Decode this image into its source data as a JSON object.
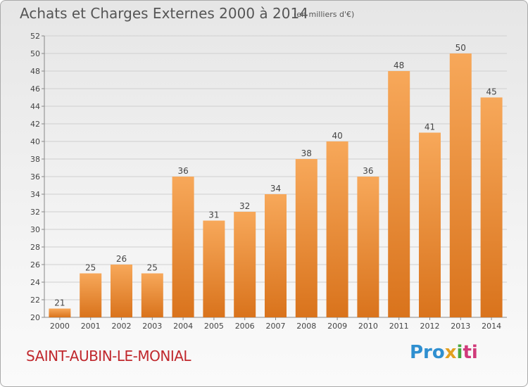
{
  "header": {
    "title": "Achats et Charges Externes 2000 à 2014",
    "subtitle": "(en milliers d'€)"
  },
  "footer": {
    "place": "SAINT-AUBIN-LE-MONIAL",
    "logo": [
      "Pro",
      "x",
      "i",
      "ti"
    ]
  },
  "colors": {
    "bar_light": "#f7a85a",
    "bar_dark": "#d9731c",
    "place_text": "#c0282d"
  },
  "chart_data": {
    "type": "bar",
    "title": "Achats et Charges Externes 2000 à 2014",
    "subtitle": "(en milliers d'€)",
    "categories": [
      "2000",
      "2001",
      "2002",
      "2003",
      "2004",
      "2005",
      "2006",
      "2007",
      "2008",
      "2009",
      "2010",
      "2011",
      "2012",
      "2013",
      "2014"
    ],
    "values": [
      21,
      25,
      26,
      25,
      36,
      31,
      32,
      34,
      38,
      40,
      36,
      48,
      41,
      50,
      45
    ],
    "ylim": [
      20,
      52
    ],
    "yticks": [
      "20",
      "22",
      "24",
      "26",
      "28",
      "30",
      "32",
      "34",
      "36",
      "38",
      "40",
      "42",
      "44",
      "46",
      "48",
      "50",
      "52"
    ],
    "grid": true,
    "data_labels": true
  }
}
